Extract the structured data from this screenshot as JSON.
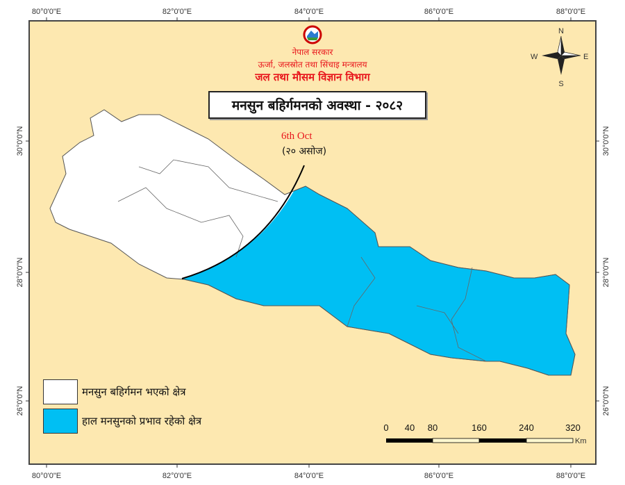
{
  "header": {
    "government": "नेपाल सरकार",
    "ministry": "ऊर्जा, जलस्रोत तथा सिंचाइ मन्त्रालय",
    "department": "जल तथा मौसम विज्ञान विभाग",
    "logo": "government-emblem"
  },
  "title": "मनसुन बहिर्गमनको अवस्था - २०८२",
  "annotation": {
    "date_en": "6th Oct",
    "date_np": "(२० असोज)"
  },
  "compass": {
    "n": "N",
    "s": "S",
    "e": "E",
    "w": "W"
  },
  "axes": {
    "longitude_labels": [
      "80°0'0\"E",
      "82°0'0\"E",
      "84°0'0\"E",
      "86°0'0\"E",
      "88°0'0\"E"
    ],
    "latitude_labels": [
      "30°0'0\"N",
      "28°0'0\"N",
      "26°0'0\"N"
    ]
  },
  "legend": [
    {
      "label": "मनसुन बहिर्गमन भएको क्षेत्र",
      "color": "#ffffff"
    },
    {
      "label": "हाल मनसुनको प्रभाव रहेको क्षेत्र",
      "color": "#00bff3"
    }
  ],
  "scale_bar": {
    "labels": [
      "0",
      "40",
      "80",
      "160",
      "240",
      "320"
    ],
    "unit": "Km"
  },
  "colors": {
    "background": "#fde8b0",
    "withdrawn": "#ffffff",
    "active": "#00bff3",
    "title_red": "#e8151b"
  }
}
